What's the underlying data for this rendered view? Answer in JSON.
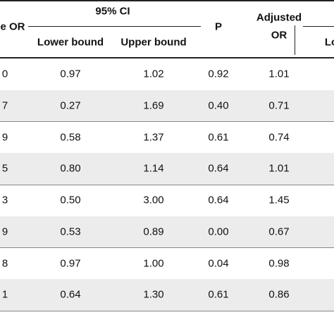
{
  "header": {
    "crude": "e OR",
    "ci": "95% CI",
    "lower": "Lower bound",
    "upper": "Upper bound",
    "p": "P",
    "adjusted": [
      "Adjusted",
      "OR"
    ],
    "lo": "Lo"
  },
  "table": {
    "rows": [
      [
        "0",
        "0.97",
        "1.02",
        "0.92",
        "1.01"
      ],
      [
        "7",
        "0.27",
        "1.69",
        "0.40",
        "0.71"
      ],
      [
        "9",
        "0.58",
        "1.37",
        "0.61",
        "0.74"
      ],
      [
        "5",
        "0.80",
        "1.14",
        "0.64",
        "1.01"
      ],
      [
        "3",
        "0.50",
        "3.00",
        "0.64",
        "1.45"
      ],
      [
        "9",
        "0.53",
        "0.89",
        "0.00",
        "0.67"
      ],
      [
        "8",
        "0.97",
        "1.00",
        "0.04",
        "0.98"
      ],
      [
        "1",
        "0.64",
        "1.30",
        "0.61",
        "0.86"
      ]
    ]
  }
}
